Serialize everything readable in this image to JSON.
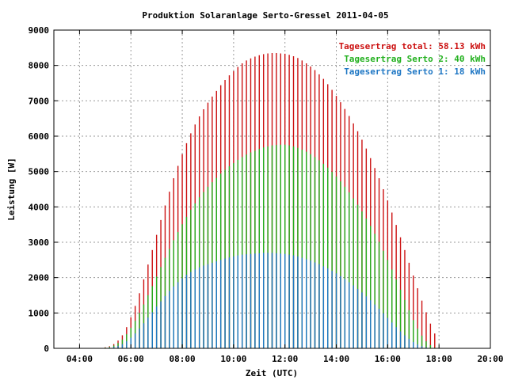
{
  "chart_data": {
    "type": "bar",
    "title": "Produktion Solaranlage Serto-Gressel 2011-04-05",
    "xlabel": "Zeit (UTC)",
    "ylabel": "Leistung [W]",
    "xlim": [
      "03:00",
      "20:00"
    ],
    "ylim": [
      0,
      9000
    ],
    "grid": true,
    "legend_position": "top-right",
    "x_ticks": [
      "04:00",
      "06:00",
      "08:00",
      "10:00",
      "12:00",
      "14:00",
      "16:00",
      "18:00",
      "20:00"
    ],
    "y_ticks": [
      "0",
      "1000",
      "2000",
      "3000",
      "4000",
      "5000",
      "6000",
      "7000",
      "8000",
      "9000"
    ],
    "x": [
      "05:00",
      "05:10",
      "05:20",
      "05:30",
      "05:40",
      "05:50",
      "06:00",
      "06:10",
      "06:20",
      "06:30",
      "06:40",
      "06:50",
      "07:00",
      "07:10",
      "07:20",
      "07:30",
      "07:40",
      "07:50",
      "08:00",
      "08:10",
      "08:20",
      "08:30",
      "08:40",
      "08:50",
      "09:00",
      "09:10",
      "09:20",
      "09:30",
      "09:40",
      "09:50",
      "10:00",
      "10:10",
      "10:20",
      "10:30",
      "10:40",
      "10:50",
      "11:00",
      "11:10",
      "11:20",
      "11:30",
      "11:40",
      "11:50",
      "12:00",
      "12:10",
      "12:20",
      "12:30",
      "12:40",
      "12:50",
      "13:00",
      "13:10",
      "13:20",
      "13:30",
      "13:40",
      "13:50",
      "14:00",
      "14:10",
      "14:20",
      "14:30",
      "14:40",
      "14:50",
      "15:00",
      "15:10",
      "15:20",
      "15:30",
      "15:40",
      "15:50",
      "16:00",
      "16:10",
      "16:20",
      "16:30",
      "16:40",
      "16:50",
      "17:00",
      "17:10",
      "17:20",
      "17:30",
      "17:40",
      "17:50"
    ],
    "series": [
      {
        "name": "Tagesertrag Serto 1: 18 kWh",
        "color": "#1f77c4",
        "values": [
          10,
          20,
          40,
          70,
          120,
          200,
          300,
          420,
          560,
          710,
          870,
          1020,
          1180,
          1330,
          1480,
          1620,
          1750,
          1870,
          1980,
          2080,
          2160,
          2230,
          2290,
          2340,
          2380,
          2420,
          2460,
          2500,
          2540,
          2570,
          2600,
          2630,
          2650,
          2660,
          2670,
          2680,
          2690,
          2700,
          2700,
          2700,
          2690,
          2680,
          2670,
          2650,
          2630,
          2600,
          2560,
          2520,
          2480,
          2430,
          2380,
          2320,
          2260,
          2190,
          2120,
          2040,
          1960,
          1870,
          1780,
          1680,
          1580,
          1470,
          1360,
          1240,
          1120,
          990,
          860,
          730,
          600,
          480,
          370,
          270,
          180,
          110,
          60,
          30,
          10,
          0
        ]
      },
      {
        "name": "Tagesertrag Serto 2: 40 kWh",
        "color": "#22b01e",
        "values": [
          20,
          40,
          80,
          150,
          250,
          400,
          580,
          780,
          1000,
          1240,
          1500,
          1760,
          2030,
          2300,
          2560,
          2810,
          3060,
          3290,
          3510,
          3720,
          3920,
          4100,
          4270,
          4420,
          4570,
          4700,
          4820,
          4940,
          5050,
          5150,
          5240,
          5330,
          5410,
          5480,
          5540,
          5590,
          5640,
          5680,
          5710,
          5740,
          5750,
          5760,
          5760,
          5740,
          5710,
          5670,
          5620,
          5560,
          5490,
          5410,
          5320,
          5220,
          5110,
          4990,
          4860,
          4720,
          4570,
          4410,
          4240,
          4060,
          3870,
          3670,
          3460,
          3240,
          3010,
          2760,
          2500,
          2230,
          1950,
          1660,
          1370,
          1080,
          800,
          560,
          360,
          200,
          90,
          20
        ]
      },
      {
        "name": "Tagesertrag total: 58.13 kWh",
        "color": "#cc1111",
        "values": [
          30,
          60,
          120,
          220,
          370,
          600,
          880,
          1200,
          1560,
          1950,
          2370,
          2780,
          3210,
          3630,
          4040,
          4430,
          4810,
          5160,
          5490,
          5800,
          6080,
          6330,
          6560,
          6760,
          6950,
          7120,
          7280,
          7440,
          7590,
          7720,
          7840,
          7960,
          8060,
          8140,
          8200,
          8250,
          8290,
          8320,
          8340,
          8350,
          8350,
          8340,
          8330,
          8300,
          8260,
          8210,
          8140,
          8060,
          7970,
          7870,
          7750,
          7620,
          7470,
          7310,
          7140,
          6960,
          6770,
          6570,
          6360,
          6140,
          5900,
          5650,
          5380,
          5100,
          4810,
          4500,
          4180,
          3840,
          3490,
          3140,
          2780,
          2420,
          2060,
          1700,
          1350,
          1020,
          700,
          420
        ]
      }
    ]
  }
}
